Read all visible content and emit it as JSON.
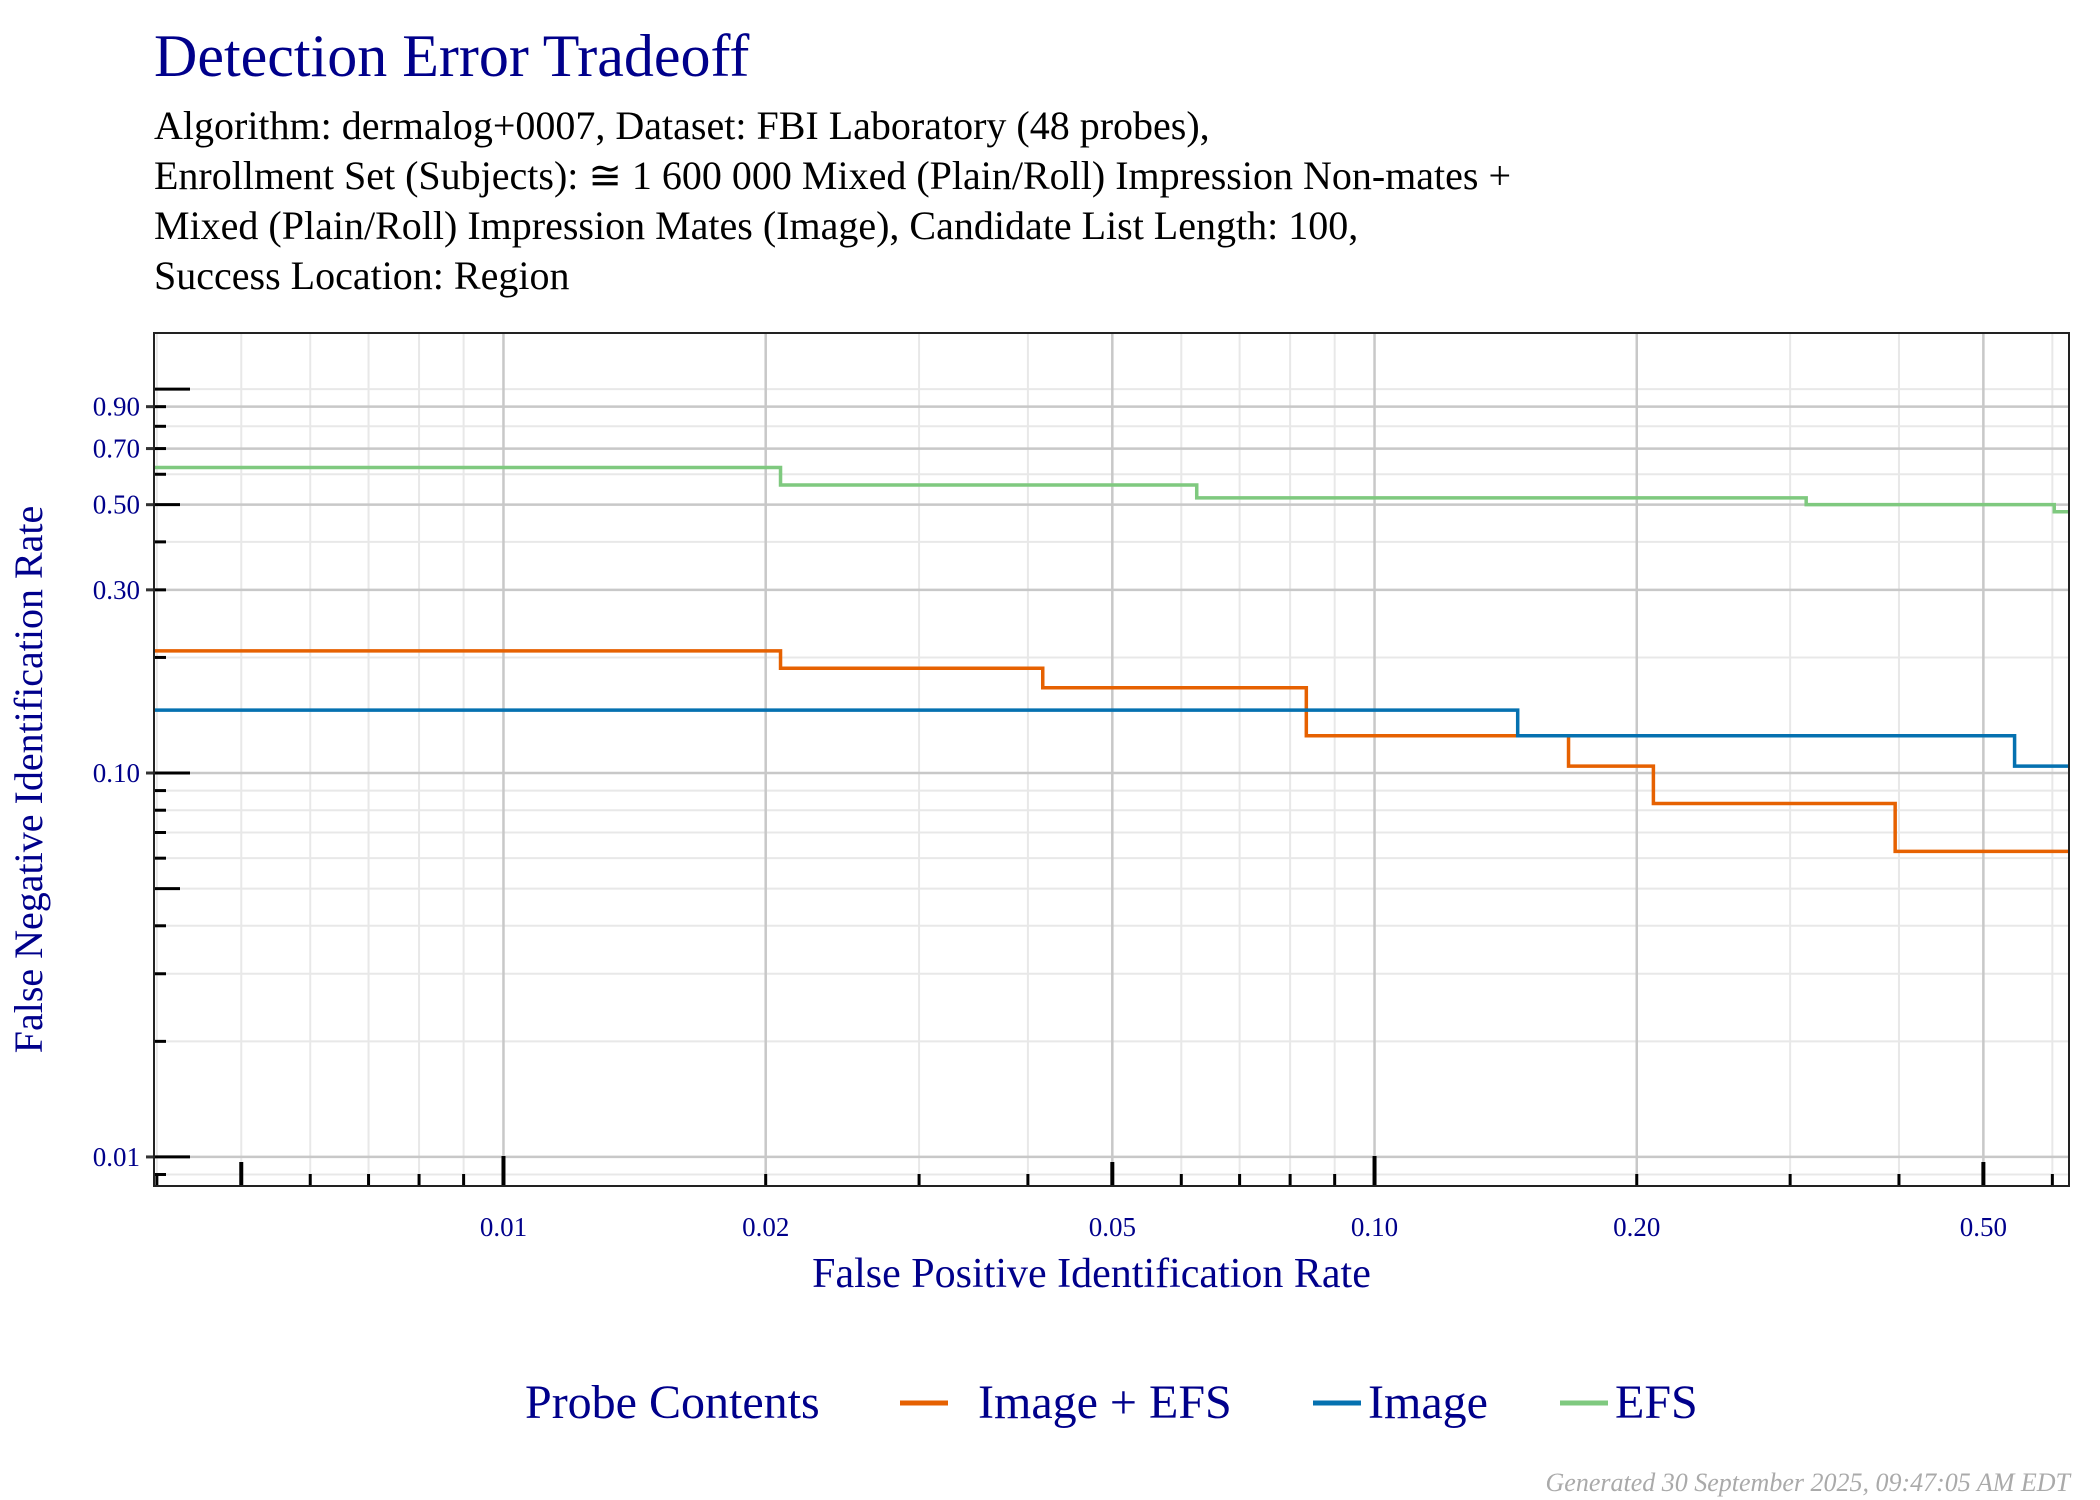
{
  "chart_data": {
    "type": "line",
    "step": true,
    "title": "Detection Error Tradeoff",
    "subtitle": [
      "Algorithm: dermalog+0007, Dataset: FBI Laboratory (48 probes),",
      "Enrollment Set (Subjects): ≅ 1 600 000 Mixed (Plain/Roll) Impression Non-mates +",
      "Mixed (Plain/Roll) Impression Mates (Image), Candidate List Length: 100,",
      "Success Location: Region"
    ],
    "xlabel": "False Positive Identification Rate",
    "ylabel": "False Negative Identification Rate",
    "xscale": "log",
    "yscale": "log",
    "xlim": [
      0.00397,
      0.627
    ],
    "ylim": [
      0.0084,
      1.4
    ],
    "xticks": [
      0.01,
      0.02,
      0.05,
      0.1,
      0.2,
      0.5
    ],
    "xtick_labels": [
      "0.01",
      "0.02",
      "0.05",
      "0.10",
      "0.20",
      "0.50"
    ],
    "yticks": [
      0.01,
      0.1,
      0.3,
      0.5,
      0.7,
      0.9
    ],
    "ytick_labels": [
      "0.01",
      "0.10",
      "0.30",
      "0.50",
      "0.70",
      "0.90"
    ],
    "grid": true,
    "legend_title": "Probe Contents",
    "legend_position": "bottom",
    "series": [
      {
        "name": "Image + EFS",
        "color": "#e66101",
        "x": [
          0.00397,
          0.0208,
          0.0416,
          0.0835,
          0.167,
          0.209,
          0.396,
          0.627
        ],
        "y": [
          0.208,
          0.1875,
          0.1667,
          0.125,
          0.1042,
          0.0833,
          0.0625,
          0.0625
        ]
      },
      {
        "name": "Image",
        "color": "#0571b0",
        "x": [
          0.00397,
          0.146,
          0.543,
          0.627
        ],
        "y": [
          0.1458,
          0.125,
          0.1042,
          0.1042
        ]
      },
      {
        "name": "EFS",
        "color": "#7fc97f",
        "x": [
          0.00397,
          0.0208,
          0.0625,
          0.313,
          0.603,
          0.627
        ],
        "y": [
          0.625,
          0.5625,
          0.5208,
          0.5,
          0.4792,
          0.4792
        ]
      }
    ]
  },
  "footer": "Generated 30 September 2025, 09:47:05 AM EDT"
}
